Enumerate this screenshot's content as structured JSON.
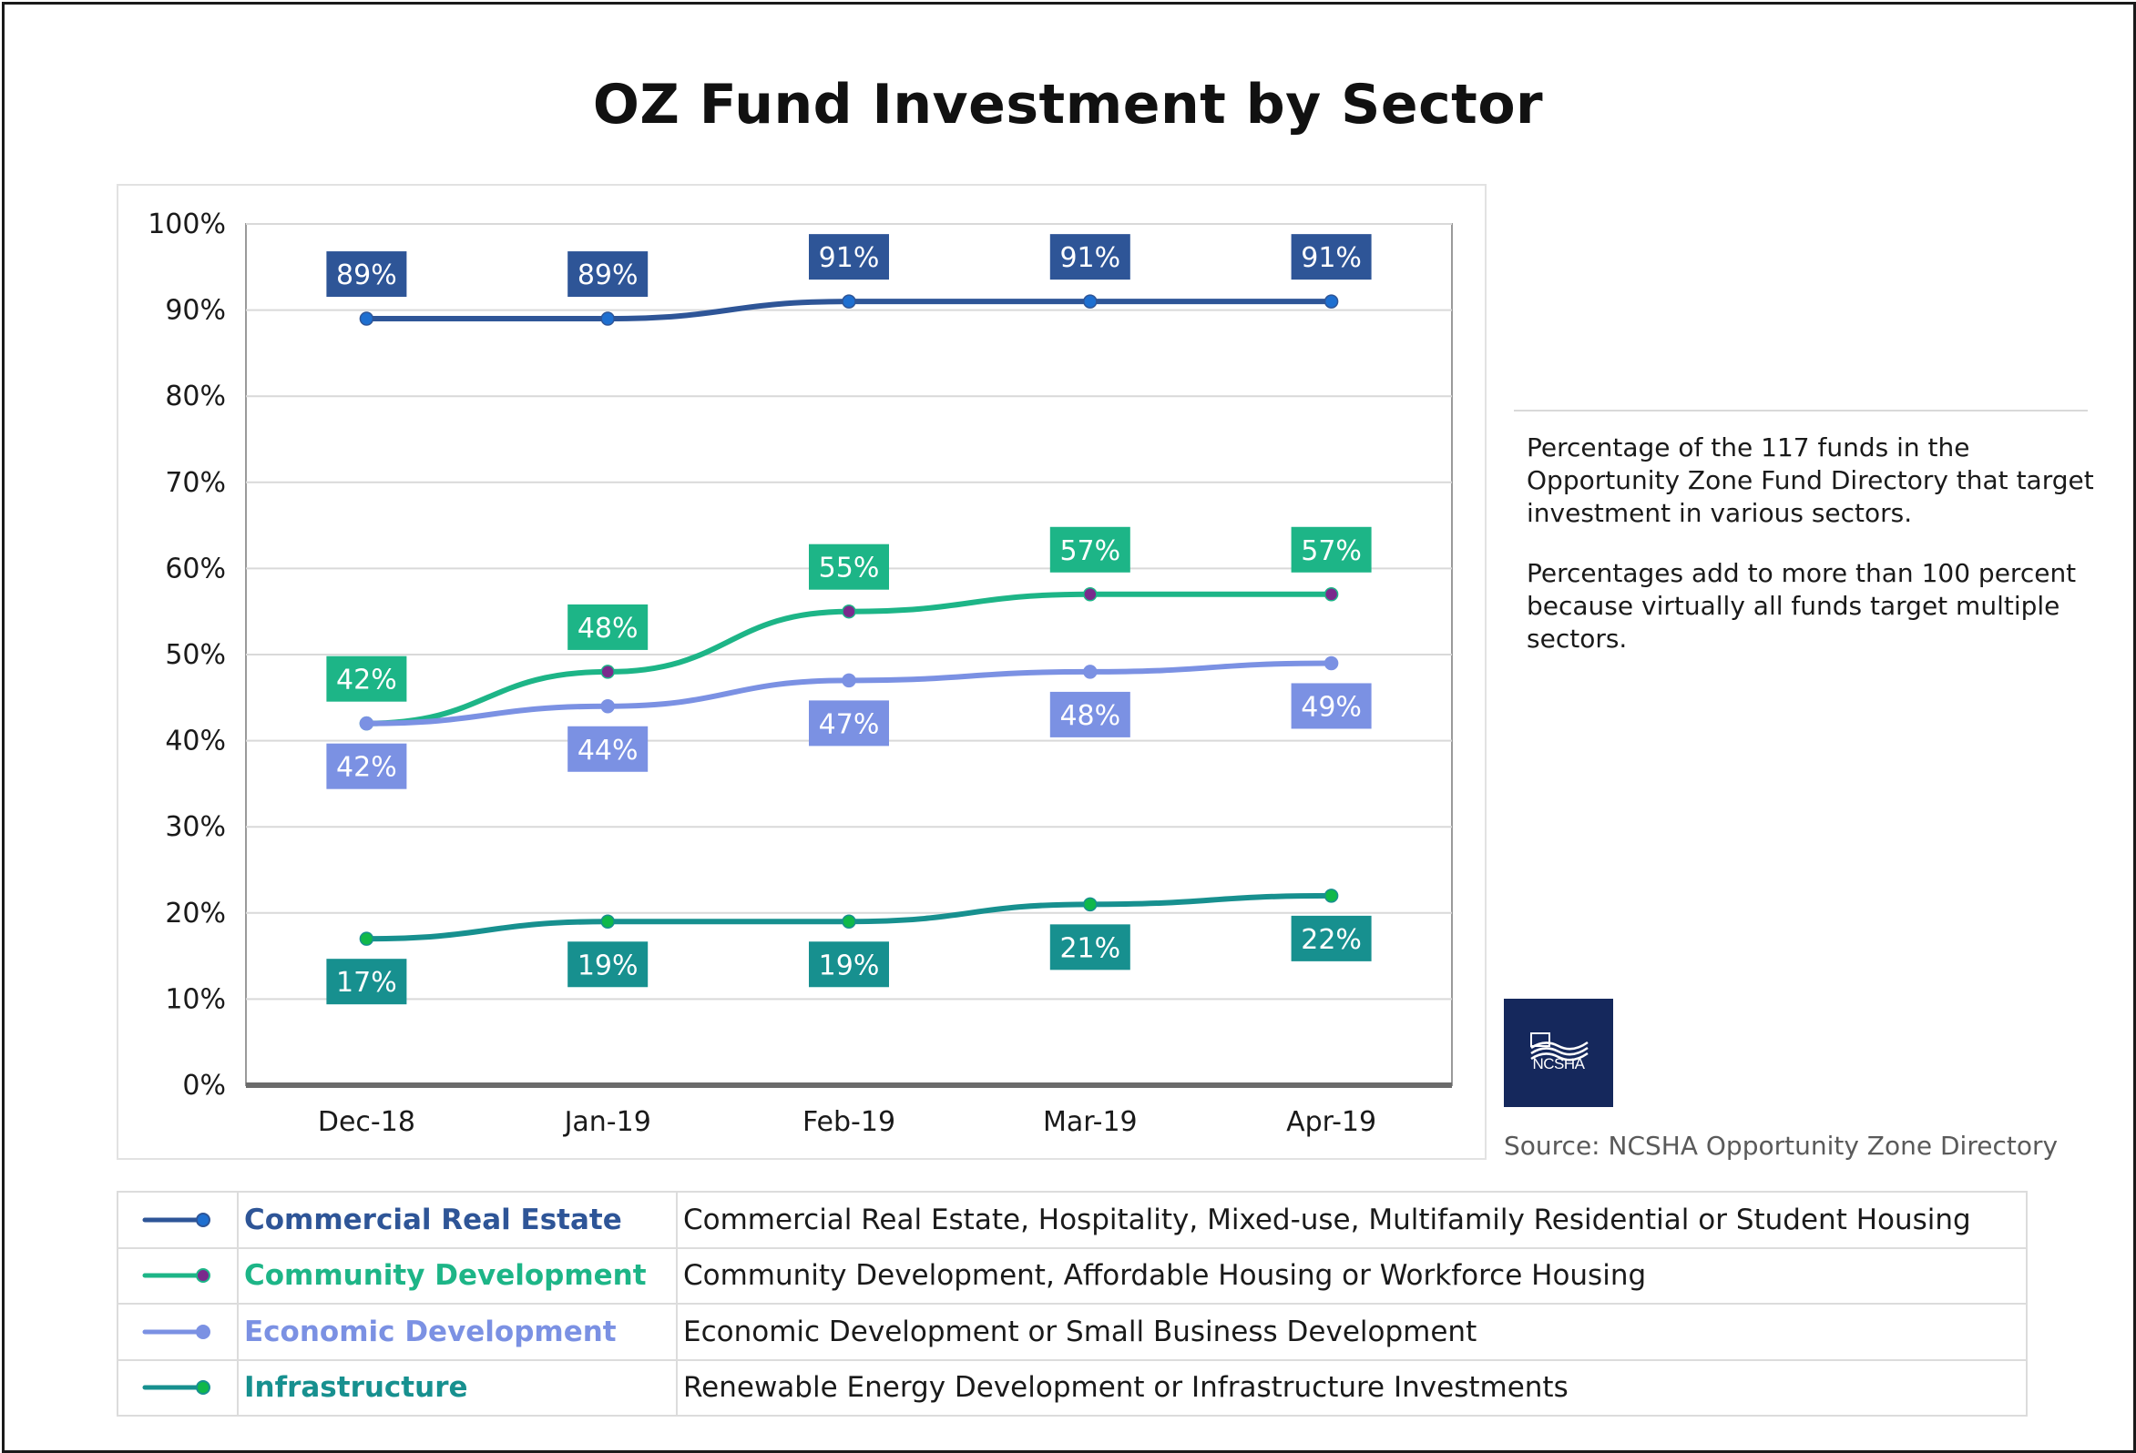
{
  "title": "OZ Fund Investment by Sector",
  "notes": {
    "paragraph1": "Percentage of the 117 funds in the Opportunity Zone Fund Directory that target investment in various sectors.",
    "paragraph2": "Percentages add to more than 100 percent because virtually all funds target multiple sectors."
  },
  "logo_text": "NCSHA",
  "source": "Source: NCSHA Opportunity Zone Directory",
  "legend": [
    {
      "name": "Commercial Real Estate",
      "description": "Commercial Real Estate, Hospitality, Mixed-use, Multifamily Residential or Student Housing",
      "color": "#2e5597",
      "marker": "#1e6fd0"
    },
    {
      "name": "Community Development",
      "description": "Community Development, Affordable Housing or Workforce Housing",
      "color": "#1db587",
      "marker": "#7a2a8c"
    },
    {
      "name": "Economic Development",
      "description": "Economic Development or Small Business Development",
      "color": "#7b91e3",
      "marker": "#7b91e3"
    },
    {
      "name": "Infrastructure",
      "description": "Renewable Energy Development or Infrastructure Investments",
      "color": "#17908f",
      "marker": "#10b84a"
    }
  ],
  "chart_data": {
    "type": "line",
    "title": "OZ Fund Investment by Sector",
    "xlabel": "",
    "ylabel": "",
    "categories": [
      "Dec-18",
      "Jan-19",
      "Feb-19",
      "Mar-19",
      "Apr-19"
    ],
    "ylim": [
      0,
      100
    ],
    "yticks": [
      "0%",
      "10%",
      "20%",
      "30%",
      "40%",
      "50%",
      "60%",
      "70%",
      "80%",
      "90%",
      "100%"
    ],
    "grid": true,
    "legend_position": "bottom table",
    "series": [
      {
        "name": "Commercial Real Estate",
        "values": [
          89,
          89,
          91,
          91,
          91
        ],
        "labels": [
          "89%",
          "89%",
          "91%",
          "91%",
          "91%"
        ],
        "label_position": "above",
        "color": "#2e5597",
        "marker_color": "#1e6fd0"
      },
      {
        "name": "Community Development",
        "values": [
          42,
          48,
          55,
          57,
          57
        ],
        "labels": [
          "42%",
          "48%",
          "55%",
          "57%",
          "57%"
        ],
        "label_position": "above",
        "color": "#1db587",
        "marker_color": "#7a2a8c"
      },
      {
        "name": "Economic Development",
        "values": [
          42,
          44,
          47,
          48,
          49
        ],
        "labels": [
          "42%",
          "44%",
          "47%",
          "48%",
          "49%"
        ],
        "label_position": "below",
        "color": "#7b91e3",
        "marker_color": "#7b91e3"
      },
      {
        "name": "Infrastructure",
        "values": [
          17,
          19,
          19,
          21,
          22
        ],
        "labels": [
          "17%",
          "19%",
          "19%",
          "21%",
          "22%"
        ],
        "label_position": "below",
        "color": "#17908f",
        "marker_color": "#10b84a"
      }
    ]
  }
}
